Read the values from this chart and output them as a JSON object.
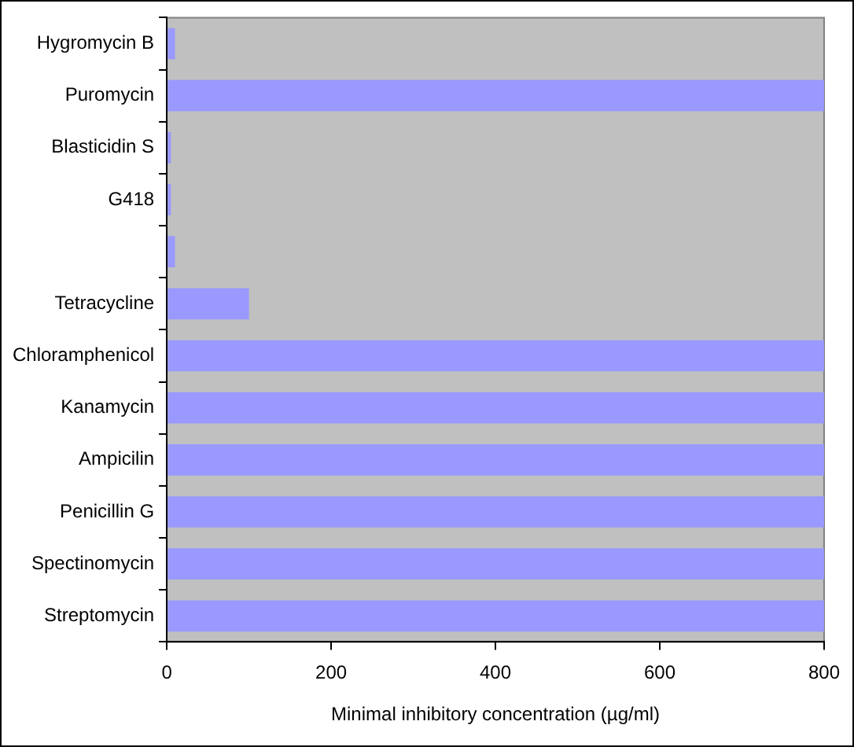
{
  "chart_data": {
    "type": "bar",
    "orientation": "horizontal",
    "categories": [
      "Hygromycin B",
      "Puromycin",
      "Blasticidin S",
      "G418",
      null,
      "Tetracycline",
      "Chloramphenicol",
      "Kanamycin",
      "Ampicilin",
      "Penicillin G",
      "Spectinomycin",
      "Streptomycin"
    ],
    "values": [
      10,
      800,
      5,
      5,
      10,
      100,
      800,
      800,
      800,
      800,
      800,
      800
    ],
    "color": "#9999ff",
    "xlabel": "Minimal inhibitory concentration (µg/ml)",
    "xlim": [
      0,
      800
    ],
    "xticks": [
      0,
      200,
      400,
      600,
      800
    ],
    "grid": false,
    "legend": false
  }
}
